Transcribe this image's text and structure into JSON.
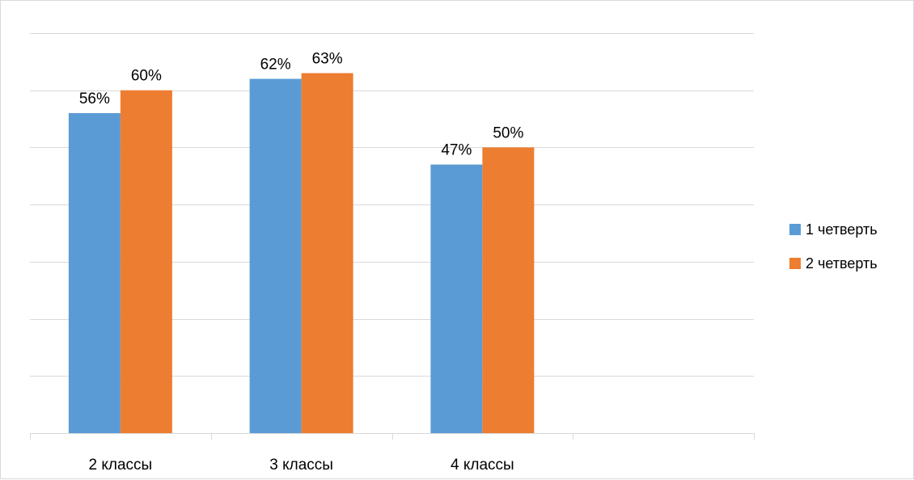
{
  "chart_data": {
    "type": "bar",
    "categories": [
      "2 классы",
      "3 классы",
      "4 классы",
      ""
    ],
    "series": [
      {
        "name": "1 четверть",
        "values": [
          56,
          62,
          47,
          null
        ],
        "labels": [
          "56%",
          "62%",
          "47%",
          ""
        ],
        "color": "#5B9BD5"
      },
      {
        "name": "2 четверть",
        "values": [
          60,
          63,
          50,
          null
        ],
        "labels": [
          "60%",
          "63%",
          "50%",
          ""
        ],
        "color": "#ED7D31"
      }
    ],
    "ylim": [
      0,
      70
    ],
    "ystep": 10,
    "grid": true,
    "legend": "right",
    "title": "",
    "xlabel": "",
    "ylabel": ""
  }
}
